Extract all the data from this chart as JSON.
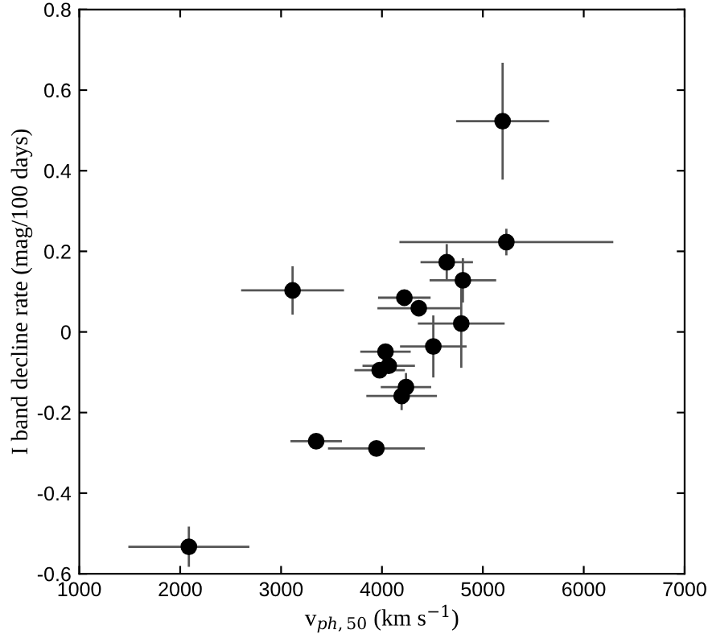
{
  "chart_data": {
    "type": "scatter",
    "xlabel": "v$_{ph,50}$ (km s$^{−1}$)",
    "ylabel": "I band decline rate (mag/100 days)",
    "x": [
      5196,
      5233,
      4642,
      4802,
      4222,
      4365,
      3114,
      4786,
      4509,
      4035,
      4067,
      3977,
      4238,
      4195,
      3348,
      3945,
      2086
    ],
    "values": [
      0.523,
      0.223,
      0.173,
      0.128,
      0.085,
      0.059,
      0.103,
      0.021,
      -0.036,
      -0.049,
      -0.084,
      -0.095,
      -0.137,
      -0.159,
      -0.271,
      -0.289,
      -0.533
    ],
    "xerrors": [
      460,
      1060,
      260,
      330,
      260,
      410,
      510,
      430,
      330,
      250,
      260,
      250,
      250,
      350,
      255,
      480,
      600
    ],
    "errors": [
      0.145,
      0.033,
      0.045,
      0.055,
      null,
      null,
      0.06,
      0.11,
      0.077,
      null,
      null,
      null,
      0.035,
      0.035,
      null,
      null,
      0.05
    ],
    "color": "#000000",
    "marker": "circle",
    "xlim": [
      1000,
      7000
    ],
    "xticks": [
      1000,
      2000,
      3000,
      4000,
      5000,
      6000,
      7000
    ],
    "ylim": [
      -0.6,
      0.8
    ],
    "yticks": [
      -0.6,
      -0.4,
      -0.2,
      0,
      0.2,
      0.4,
      0.6,
      0.8
    ],
    "grid": false
  }
}
